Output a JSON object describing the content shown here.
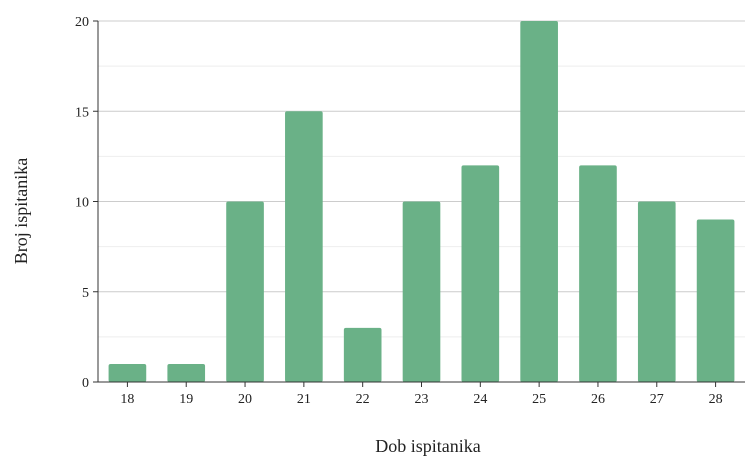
{
  "chart_data": {
    "type": "bar",
    "title": "",
    "xlabel": "Dob ispitanika",
    "ylabel": "Broj ispitanika",
    "categories": [
      "18",
      "19",
      "20",
      "21",
      "22",
      "23",
      "24",
      "25",
      "26",
      "27",
      "28"
    ],
    "values": [
      1,
      1,
      10,
      15,
      3,
      10,
      12,
      20,
      12,
      10,
      9
    ],
    "ylim": [
      0,
      20
    ],
    "yticks": [
      "0",
      "5",
      "10",
      "15",
      "20"
    ],
    "grid": true,
    "legend": "none",
    "colors": {
      "bar": "#6ab187",
      "grid_major": "#cccccc",
      "grid_minor": "#eeeeee",
      "axis": "#333333"
    }
  }
}
